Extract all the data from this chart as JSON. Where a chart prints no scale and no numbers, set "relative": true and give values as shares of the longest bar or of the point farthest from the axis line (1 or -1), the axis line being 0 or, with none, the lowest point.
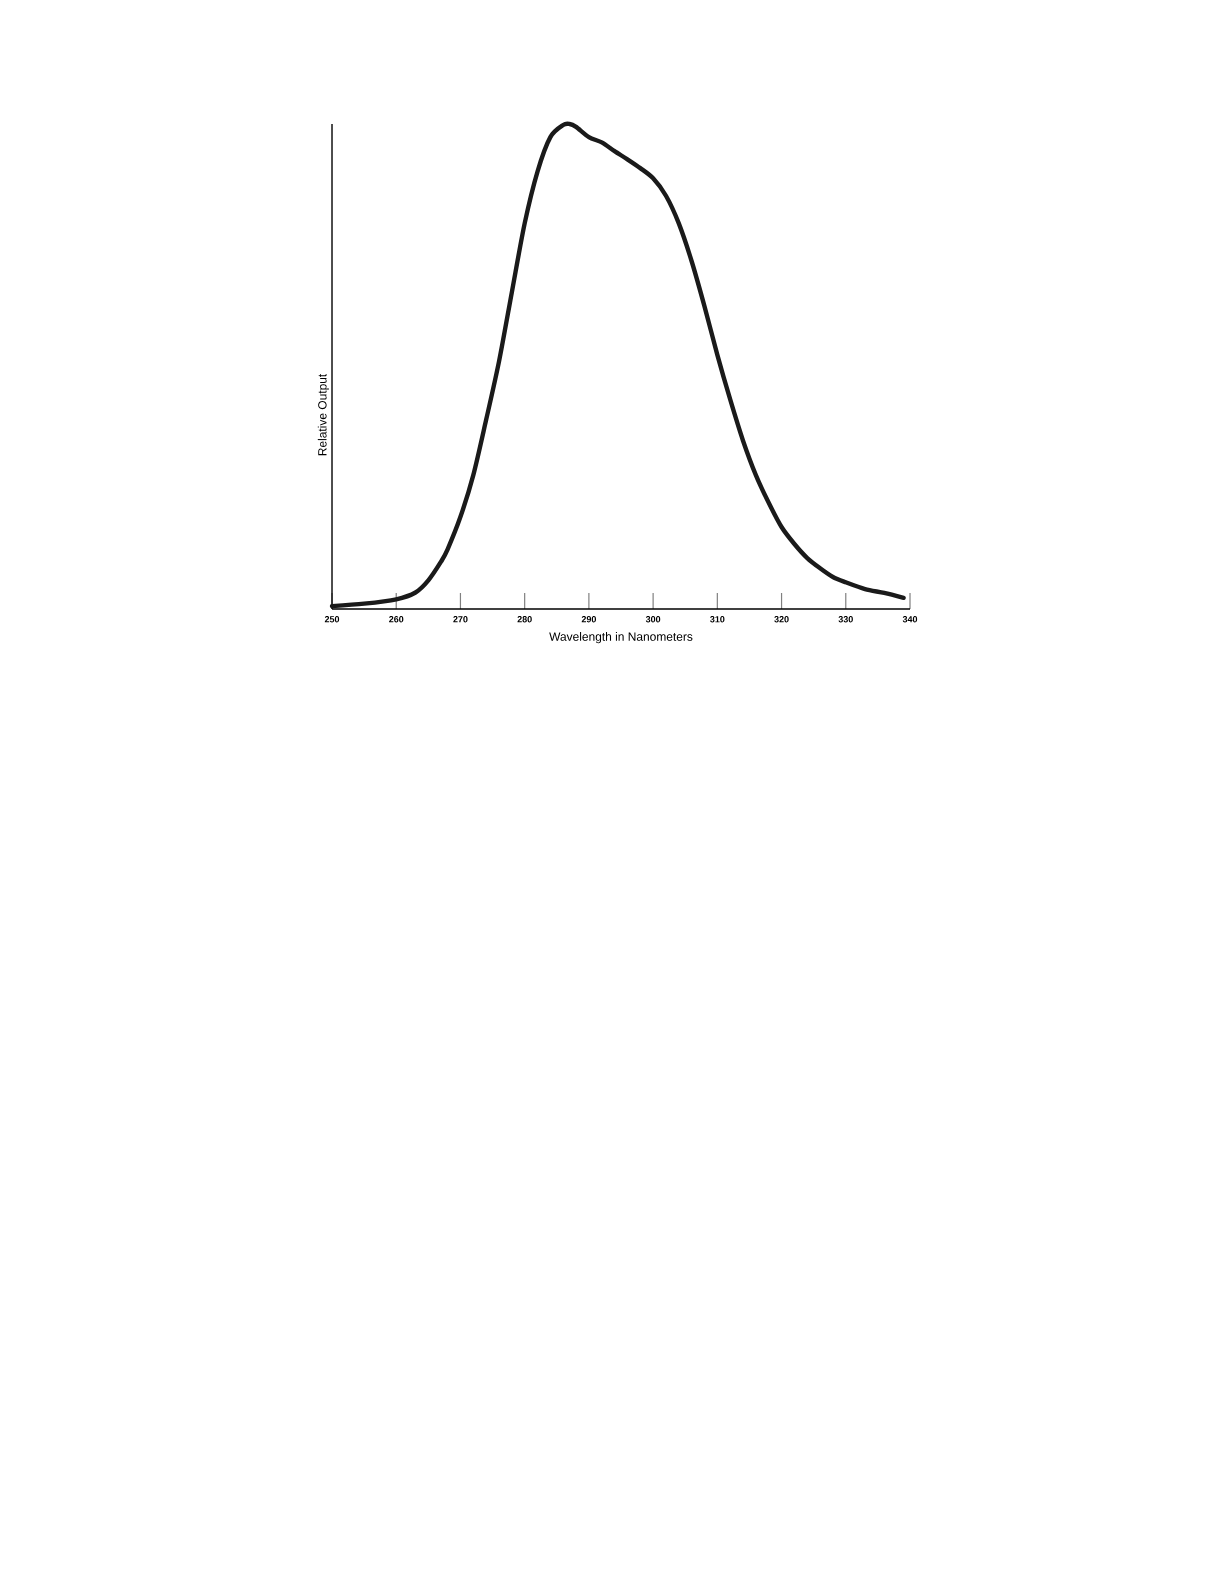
{
  "chart_data": {
    "type": "line",
    "relative": true,
    "xlabel": "Wavelength in Nanometers",
    "ylabel": "Relative Output",
    "xlim": [
      250,
      340
    ],
    "xticks": [
      250,
      260,
      270,
      280,
      290,
      300,
      310,
      320,
      330,
      340
    ],
    "series": [
      {
        "color": "#1a1a1a",
        "x": [
          250,
          255,
          260,
          263,
          265,
          267,
          268,
          270,
          272,
          274,
          276,
          278,
          280,
          282,
          284,
          286,
          287,
          288,
          290,
          292,
          294,
          296,
          298,
          300,
          302,
          304,
          306,
          308,
          310,
          312,
          314,
          316,
          318,
          320,
          322,
          324,
          326,
          328,
          330,
          333,
          336,
          339
        ],
        "values": [
          0.006,
          0.011,
          0.02,
          0.034,
          0.059,
          0.098,
          0.123,
          0.19,
          0.276,
          0.39,
          0.51,
          0.653,
          0.795,
          0.902,
          0.973,
          0.998,
          1.0,
          0.994,
          0.973,
          0.962,
          0.944,
          0.927,
          0.909,
          0.888,
          0.852,
          0.795,
          0.717,
          0.624,
          0.524,
          0.432,
          0.347,
          0.276,
          0.219,
          0.169,
          0.134,
          0.105,
          0.084,
          0.066,
          0.055,
          0.041,
          0.033,
          0.023
        ]
      }
    ]
  }
}
